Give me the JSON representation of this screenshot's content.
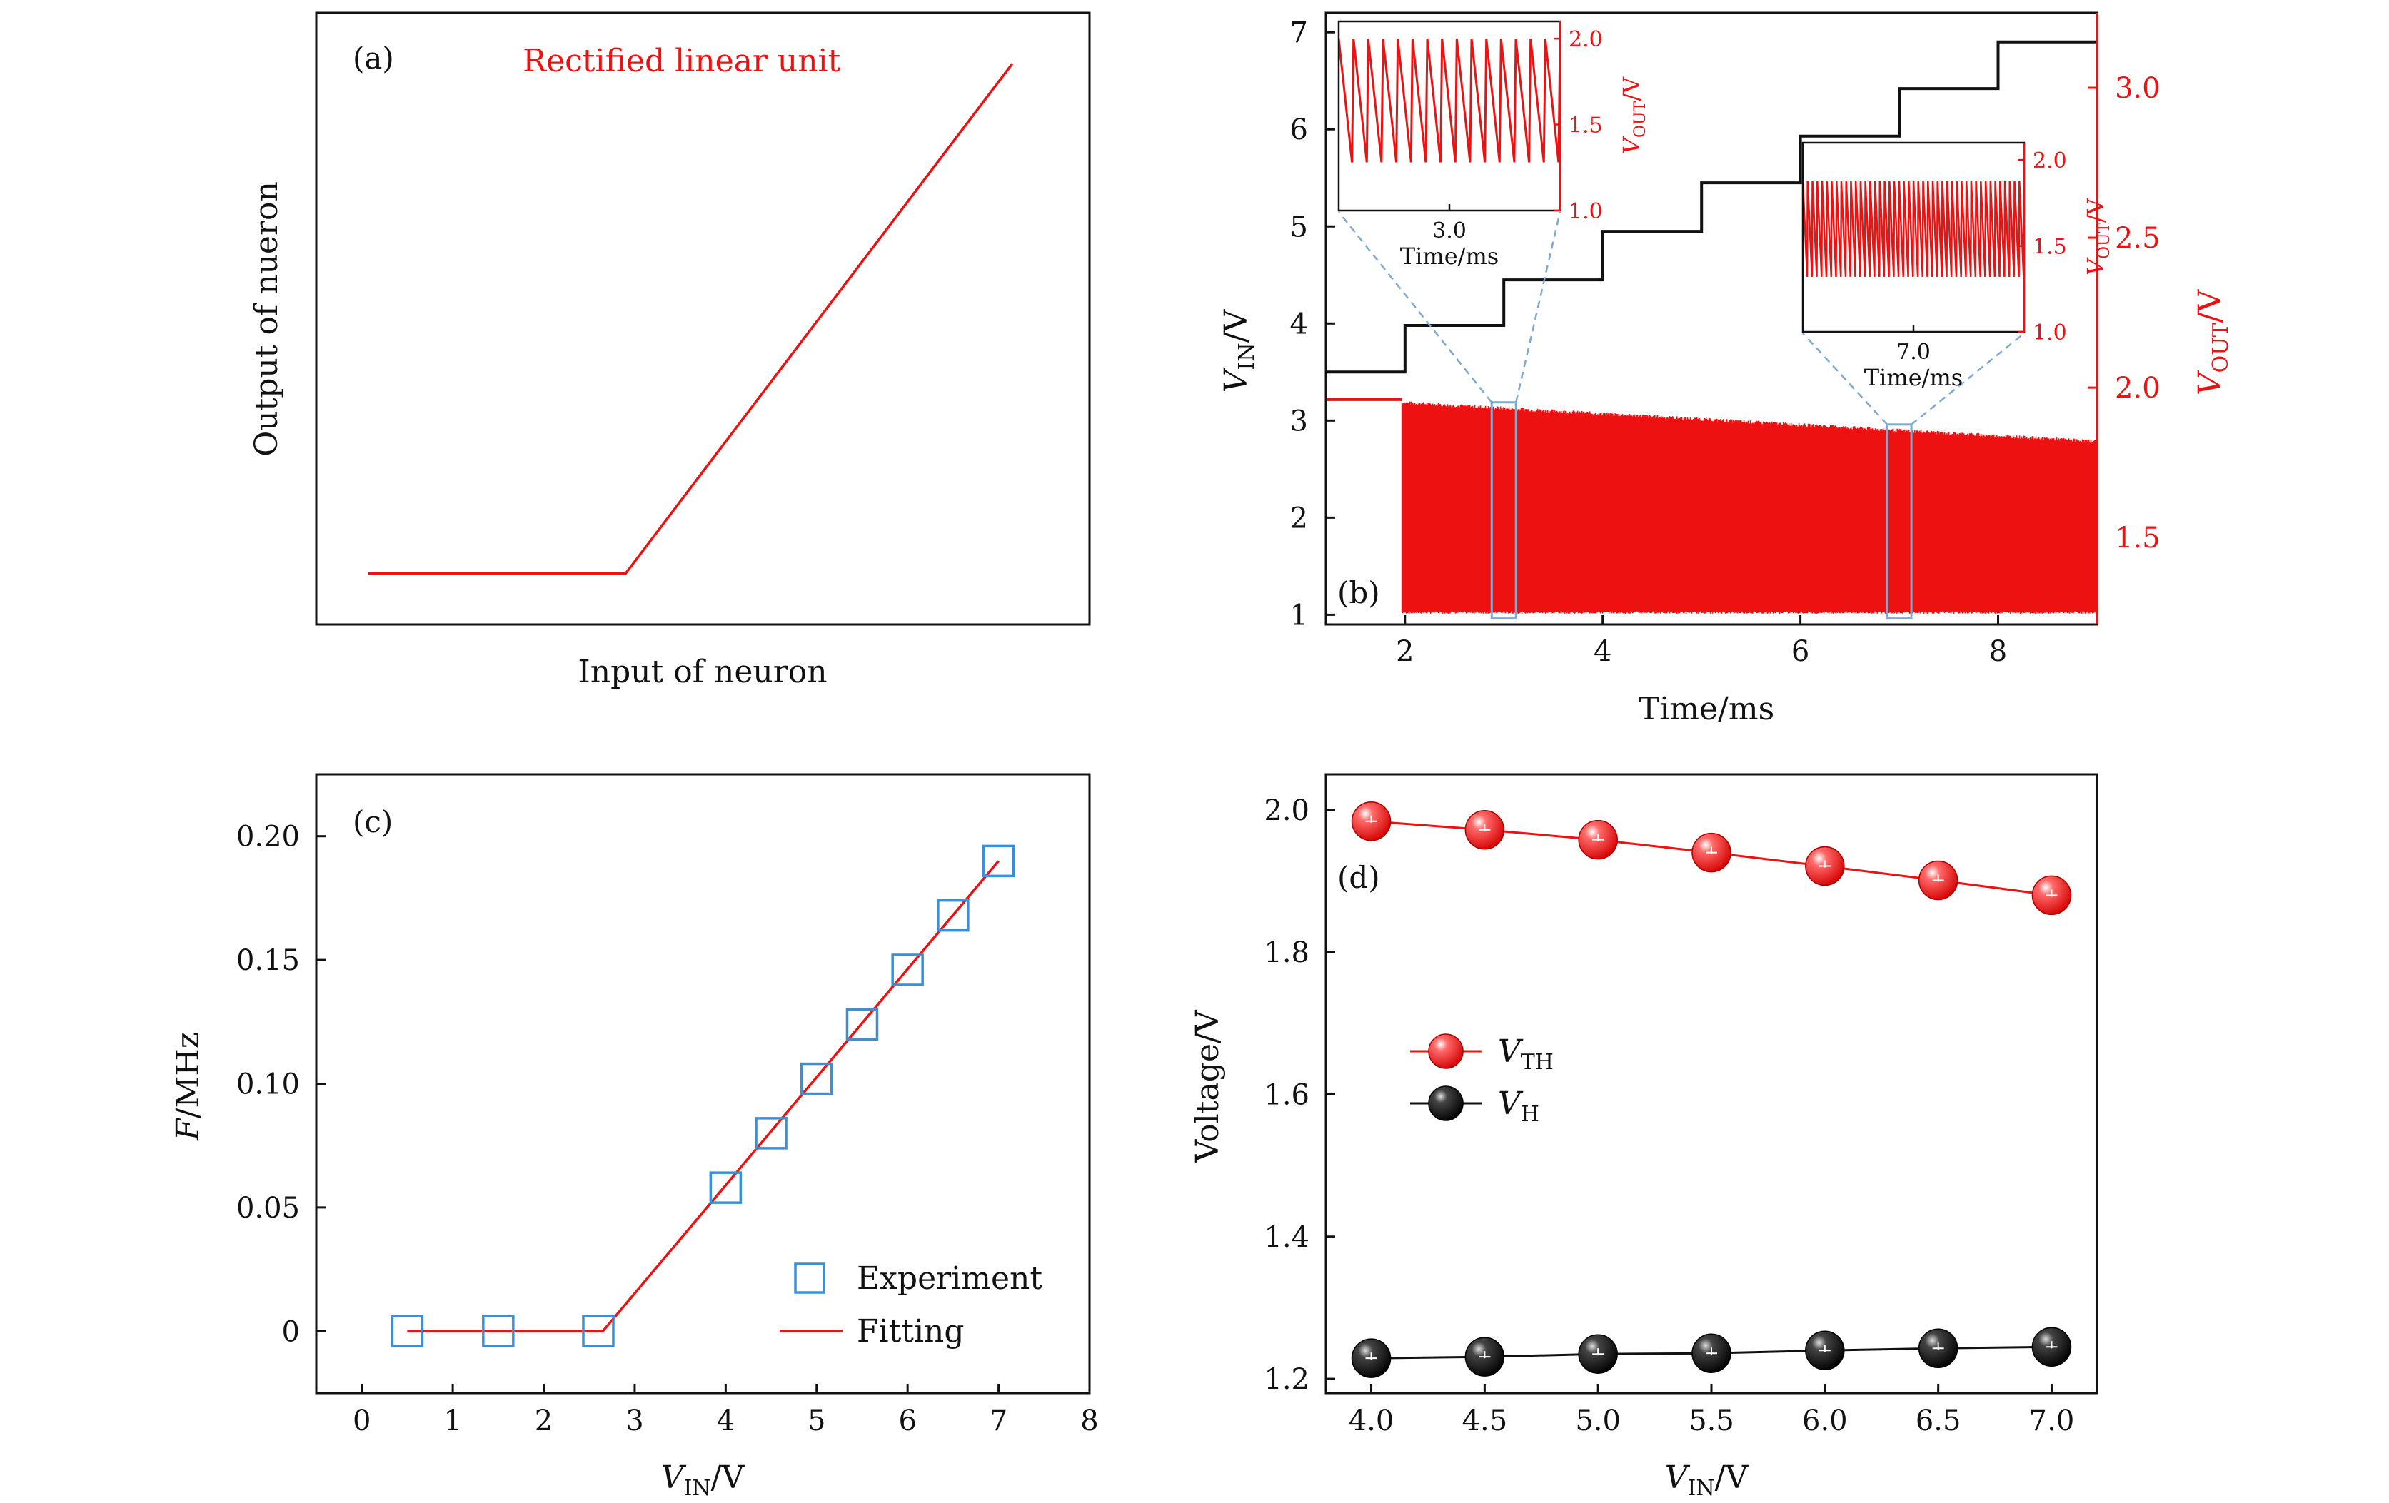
{
  "figure": {
    "background": "#ffffff"
  },
  "colors": {
    "red": "#ee1111",
    "black": "#111111",
    "blue": "#3b8fd8",
    "inset_dash": "#7fa9d1"
  },
  "chart_data": [
    {
      "id": "a",
      "type": "line",
      "panel_label": "(a)",
      "title": "Rectified linear unit",
      "xlabel": "Input of neuron",
      "ylabel": "Output of nueron",
      "series": [
        {
          "x": [
            0.0,
            1.0,
            2.5
          ],
          "values": [
            0.0,
            0.0,
            1.0
          ]
        }
      ],
      "xlim": [
        -0.2,
        2.8
      ],
      "ylim": [
        -0.1,
        1.1
      ],
      "axis_ticks": false,
      "grid": false
    },
    {
      "id": "b",
      "type": "line",
      "panel_label": "(b)",
      "xlabel": "Time/ms",
      "ylabel_left": {
        "main": "V",
        "sub": "IN",
        "suffix": "/V"
      },
      "ylabel_right": {
        "main": "V",
        "sub": "OUT",
        "suffix": "/V"
      },
      "xlim": [
        1.2,
        9.0
      ],
      "ylim_left": [
        0.9,
        7.2
      ],
      "ylim_right": [
        1.21,
        3.25
      ],
      "xticks": [
        "2",
        "4",
        "6",
        "8"
      ],
      "yticks_left": [
        "1",
        "2",
        "3",
        "4",
        "5",
        "6",
        "7"
      ],
      "yticks_right": [
        "1.5",
        "2.0",
        "2.5",
        "3.0"
      ],
      "vin_steps": {
        "t": [
          1.2,
          2,
          3,
          4,
          5,
          6,
          7,
          8,
          9.0
        ],
        "v": [
          3.5,
          3.98,
          4.45,
          4.95,
          5.45,
          5.93,
          6.42,
          6.9
        ]
      },
      "vout": {
        "start_ms": 1.97,
        "baseline_before": 1.96,
        "low": 1.25,
        "high_start": 1.95,
        "high_end": 1.82,
        "description_free_values_only": true
      },
      "zoom_boxes": [
        {
          "t_center": 3.0
        },
        {
          "t_center": 7.0
        }
      ],
      "insets": [
        {
          "xlabel": "Time/ms",
          "ylabel": {
            "main": "V",
            "sub": "OUT",
            "suffix": "/V"
          },
          "xticks": [
            "3.0"
          ],
          "yticks": [
            "1.0",
            "1.5",
            "2.0"
          ],
          "ylim": [
            1.0,
            2.1
          ],
          "period_ms": 0.02,
          "low": 1.28,
          "high": 2.0
        },
        {
          "xlabel": "Time/ms",
          "ylabel": {
            "main": "V",
            "sub": "OUT",
            "suffix": "/V"
          },
          "xticks": [
            "7.0"
          ],
          "yticks": [
            "1.0",
            "1.5",
            "2.0"
          ],
          "ylim": [
            1.0,
            2.1
          ],
          "period_ms": 0.0065,
          "low": 1.32,
          "high": 1.88
        }
      ]
    },
    {
      "id": "c",
      "type": "scatter",
      "panel_label": "(c)",
      "xlabel": {
        "main": "V",
        "sub": "IN",
        "suffix": "/V"
      },
      "ylabel": {
        "main": "F",
        "suffix": "/MHz"
      },
      "xlim": [
        -0.5,
        8
      ],
      "ylim": [
        -0.025,
        0.225
      ],
      "xticks": [
        "0",
        "1",
        "2",
        "3",
        "4",
        "5",
        "6",
        "7",
        "8"
      ],
      "yticks": [
        "0",
        "0.05",
        "0.10",
        "0.15",
        "0.20"
      ],
      "series": [
        {
          "name": "Experiment",
          "x": [
            0.5,
            1.5,
            2.6,
            4.0,
            4.5,
            5.0,
            5.5,
            6.0,
            6.5,
            7.0
          ],
          "values": [
            0.0,
            0.0,
            0.0,
            0.058,
            0.08,
            0.102,
            0.124,
            0.146,
            0.168,
            0.19
          ]
        },
        {
          "name": "Fitting",
          "x": [
            0.5,
            2.65,
            7.0
          ],
          "values": [
            0.0,
            0.0,
            0.19
          ]
        }
      ],
      "legend": {
        "position": "bottom-right"
      }
    },
    {
      "id": "d",
      "type": "line",
      "panel_label": "(d)",
      "xlabel": {
        "main": "V",
        "sub": "IN",
        "suffix": "/V"
      },
      "ylabel": "Voltage/V",
      "xlim": [
        3.8,
        7.2
      ],
      "ylim": [
        1.18,
        2.05
      ],
      "xticks": [
        "4.0",
        "4.5",
        "5.0",
        "5.5",
        "6.0",
        "6.5",
        "7.0"
      ],
      "yticks": [
        "1.2",
        "1.4",
        "1.6",
        "1.8",
        "2.0"
      ],
      "categories": [
        4.0,
        4.5,
        5.0,
        5.5,
        6.0,
        6.5,
        7.0
      ],
      "series": [
        {
          "name": {
            "main": "V",
            "sub": "TH"
          },
          "values": [
            1.984,
            1.972,
            1.958,
            1.94,
            1.921,
            1.901,
            1.88
          ]
        },
        {
          "name": {
            "main": "V",
            "sub": "H"
          },
          "values": [
            1.229,
            1.231,
            1.235,
            1.236,
            1.24,
            1.243,
            1.245
          ]
        }
      ],
      "legend": {
        "position": "center-left"
      }
    }
  ]
}
